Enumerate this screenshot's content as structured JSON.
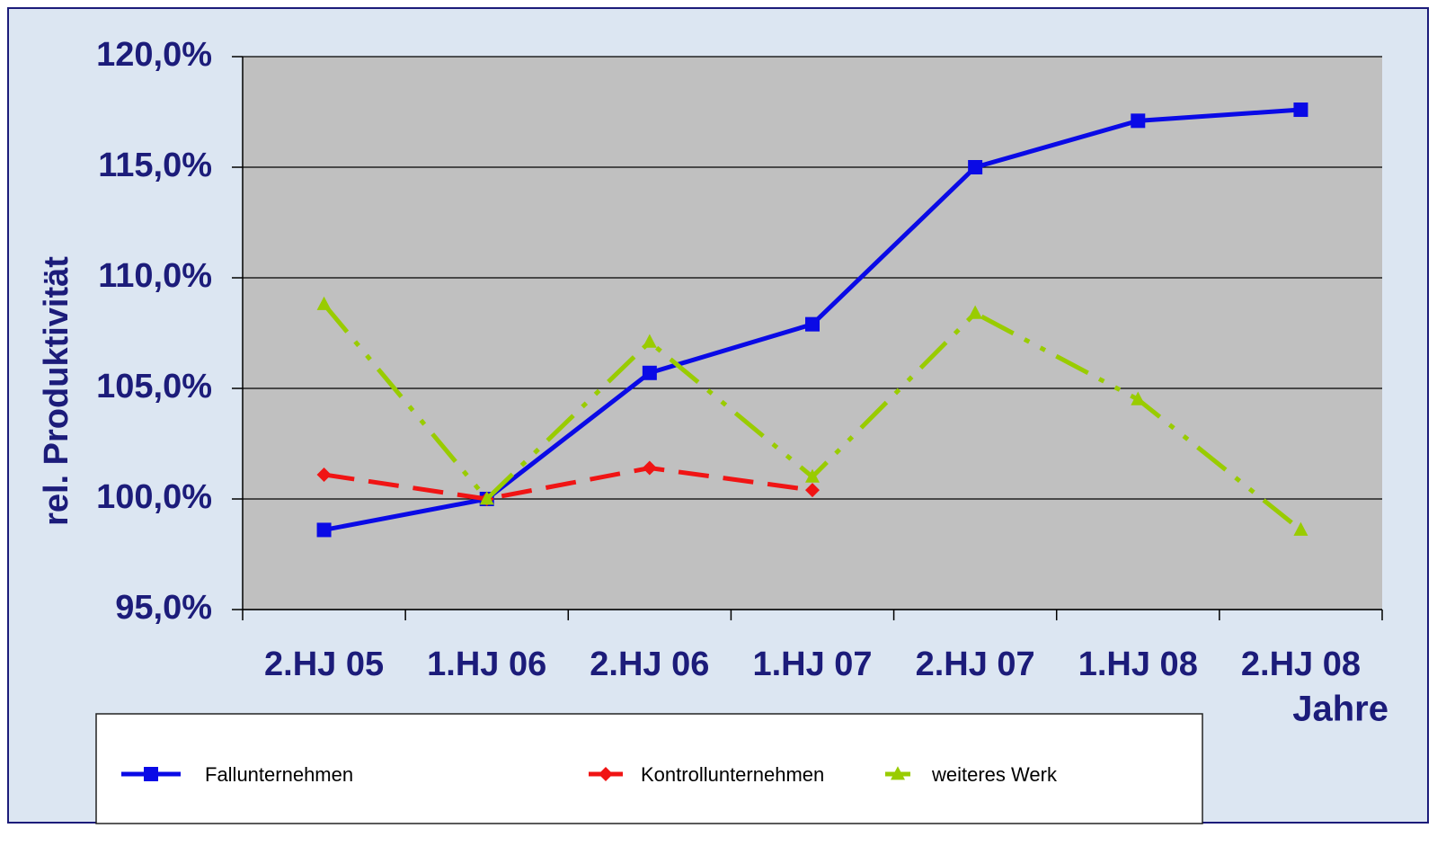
{
  "chart_data": {
    "type": "line",
    "y_label": "rel. Produktivität",
    "x_label": "Jahre",
    "categories": [
      "2.HJ 05",
      "1.HJ 06",
      "2.HJ 06",
      "1.HJ 07",
      "2.HJ 07",
      "1.HJ 08",
      "2.HJ 08"
    ],
    "series": [
      {
        "name": "Fallunternehmen",
        "color": "#0a0ae6",
        "dash": "solid",
        "marker": "square",
        "values": [
          98.6,
          100.0,
          105.7,
          107.9,
          115.0,
          117.1,
          117.6
        ]
      },
      {
        "name": "Kontrollunternehmen",
        "color": "#f01414",
        "dash": "dashed",
        "marker": "diamond",
        "values": [
          101.1,
          100.0,
          101.4,
          100.4,
          null,
          null,
          null
        ]
      },
      {
        "name": "weiteres Werk",
        "color": "#99cc00",
        "dash": "dashdotdot",
        "marker": "triangle",
        "values": [
          108.8,
          100.0,
          107.1,
          101.0,
          108.4,
          104.5,
          98.6
        ]
      }
    ],
    "ylim": [
      95,
      120
    ],
    "yticks": [
      {
        "value": 95,
        "label": "95,0%"
      },
      {
        "value": 100,
        "label": "100,0%"
      },
      {
        "value": 105,
        "label": "105,0%"
      },
      {
        "value": 110,
        "label": "110,0%"
      },
      {
        "value": 115,
        "label": "115,0%"
      },
      {
        "value": 120,
        "label": "120,0%"
      }
    ],
    "grid": true
  }
}
